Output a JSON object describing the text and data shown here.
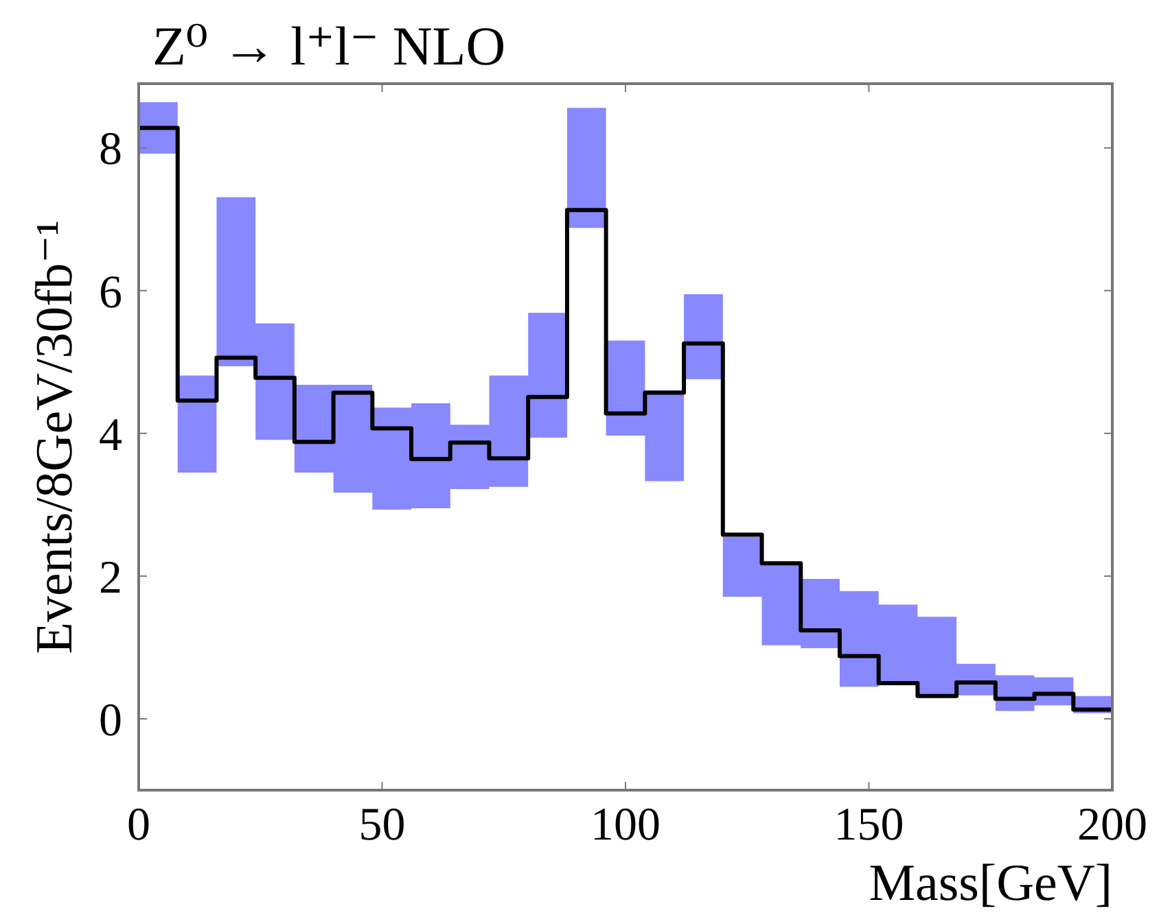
{
  "chart_data": {
    "type": "step",
    "title": "Z⁰ → l⁺l⁻ NLO",
    "xlabel": "Mass[GeV]",
    "ylabel": "Events/8GeV/30fb⁻¹",
    "x": [
      0,
      8,
      16,
      24,
      32,
      40,
      48,
      56,
      64,
      72,
      80,
      88,
      96,
      104,
      112,
      120,
      128,
      136,
      144,
      152,
      160,
      168,
      176,
      184,
      192,
      200
    ],
    "series": [
      {
        "color": "#000000",
        "values": [
          8.28,
          4.46,
          5.06,
          4.78,
          3.88,
          4.57,
          4.07,
          3.64,
          3.87,
          3.65,
          4.51,
          7.13,
          4.28,
          4.57,
          5.26,
          2.58,
          2.18,
          1.24,
          0.88,
          0.5,
          0.32,
          0.51,
          0.28,
          0.35,
          0.13,
          0.13
        ],
        "lower": [
          7.92,
          3.45,
          4.94,
          3.91,
          3.45,
          3.17,
          2.93,
          2.95,
          3.22,
          3.25,
          3.94,
          6.88,
          3.97,
          3.33,
          4.76,
          1.71,
          1.03,
          0.99,
          0.45,
          0.5,
          0.32,
          0.33,
          0.11,
          0.19,
          0.08,
          0.08
        ],
        "upper": [
          8.64,
          4.81,
          7.31,
          5.54,
          4.68,
          4.68,
          4.36,
          4.42,
          4.12,
          4.81,
          5.69,
          8.56,
          5.3,
          4.6,
          5.95,
          2.55,
          2.18,
          1.96,
          1.79,
          1.6,
          1.43,
          0.77,
          0.61,
          0.58,
          0.32,
          0.32
        ]
      }
    ],
    "xlim": [
      0,
      200
    ],
    "ylim": [
      -1,
      8.9
    ],
    "xticks": [
      0,
      50,
      100,
      150,
      200
    ],
    "yticks": [
      0,
      2,
      4,
      6,
      8
    ],
    "grid": false,
    "line_style": "solid",
    "marker": "none"
  }
}
